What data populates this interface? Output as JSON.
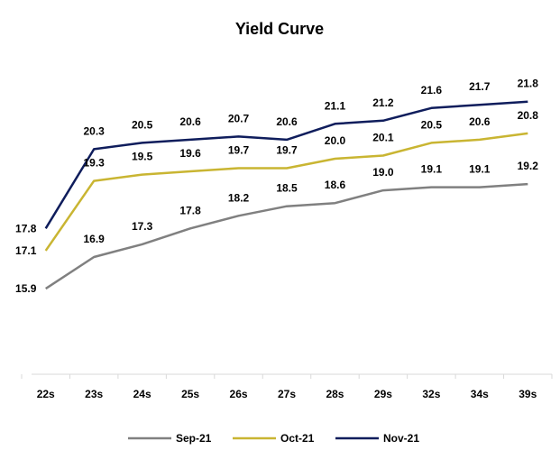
{
  "chart_data": {
    "type": "line",
    "title": "Yield Curve",
    "xlabel": "",
    "ylabel": "",
    "categories": [
      "22s",
      "23s",
      "24s",
      "25s",
      "26s",
      "27s",
      "28s",
      "29s",
      "32s",
      "34s",
      "39s"
    ],
    "series": [
      {
        "name": "Sep-21",
        "color": "#808080",
        "values": [
          15.9,
          16.9,
          17.3,
          17.8,
          18.2,
          18.5,
          18.6,
          19.0,
          19.1,
          19.1,
          19.2
        ]
      },
      {
        "name": "Oct-21",
        "color": "#C9B532",
        "values": [
          17.1,
          19.3,
          19.5,
          19.6,
          19.7,
          19.7,
          20.0,
          20.1,
          20.5,
          20.6,
          20.8
        ]
      },
      {
        "name": "Nov-21",
        "color": "#0F1D5C",
        "values": [
          17.8,
          20.3,
          20.5,
          20.6,
          20.7,
          20.6,
          21.1,
          21.2,
          21.6,
          21.7,
          21.8
        ]
      }
    ],
    "data_labels": {
      "Sep-21": [
        "15.9",
        "16.9",
        "17.3",
        "17.8",
        "18.2",
        "18.5",
        "18.6",
        "19.0",
        "19.1",
        "19.1",
        "19.2"
      ],
      "Oct-21": [
        "17.1",
        "19.3",
        "19.5",
        "19.6",
        "19.7",
        "19.7",
        "20.0",
        "20.1",
        "20.5",
        "20.6",
        "20.8"
      ],
      "Nov-21": [
        "17.8",
        "20.3",
        "20.5",
        "20.6",
        "20.7",
        "20.6",
        "21.1",
        "21.2",
        "21.6",
        "21.7",
        "21.8"
      ]
    },
    "ylim": [
      13.2,
      23.3
    ],
    "grid": false,
    "legend": "bottom",
    "axis_line_color": "#D9D9D9"
  }
}
